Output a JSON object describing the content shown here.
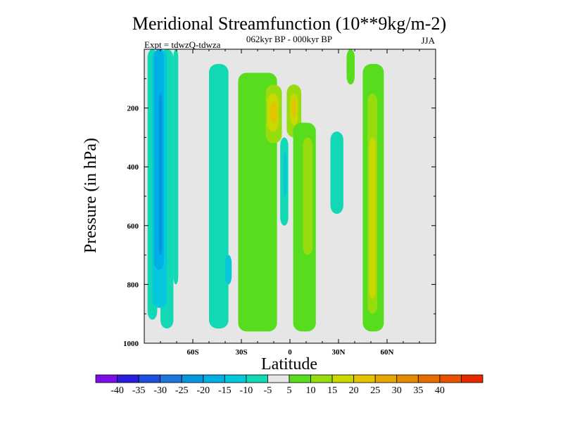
{
  "chart_data": {
    "type": "heatmap",
    "title": "Meridional Streamfunction (10**9kg/m-2)",
    "subtitle_left": "Expt = tdwzQ-tdwza",
    "subtitle_center": "062kyr BP - 000kyr BP",
    "subtitle_right": "JJA",
    "xlabel": "Latitude",
    "ylabel": "Pressure (in hPa)",
    "xlim": [
      -90,
      90
    ],
    "ylim": [
      1000,
      0
    ],
    "x_ticks": [
      {
        "value": -60,
        "label": "60S"
      },
      {
        "value": -30,
        "label": "30S"
      },
      {
        "value": 0,
        "label": "0"
      },
      {
        "value": 30,
        "label": "30N"
      },
      {
        "value": 60,
        "label": "60N"
      }
    ],
    "y_ticks": [
      {
        "value": 200,
        "label": "200"
      },
      {
        "value": 400,
        "label": "400"
      },
      {
        "value": 600,
        "label": "600"
      },
      {
        "value": 800,
        "label": "800"
      },
      {
        "value": 1000,
        "label": "1000"
      }
    ],
    "background_color": "#e6e6e6",
    "colorbar": {
      "colors": [
        "#7a10e6",
        "#2a1edc",
        "#1d4fdc",
        "#1e78dc",
        "#0596e0",
        "#00b0e4",
        "#06c8dc",
        "#12d8b4",
        "#e6e6e6",
        "#58dc1e",
        "#96dc0f",
        "#c8d800",
        "#e4c400",
        "#e6a800",
        "#e68a00",
        "#e66e00",
        "#e65200",
        "#e62a00"
      ],
      "labels": [
        "-40",
        "-35",
        "-30",
        "-25",
        "-20",
        "-15",
        "-10",
        "-5",
        "5",
        "10",
        "15",
        "20",
        "25",
        "30",
        "35",
        "40"
      ]
    },
    "regions": [
      {
        "lon": [
          -88,
          -82
        ],
        "p": [
          0,
          920
        ],
        "color": "#12d8b4"
      },
      {
        "lon": [
          -80,
          -72
        ],
        "p": [
          0,
          950
        ],
        "color": "#12d8b4"
      },
      {
        "lon": [
          -85,
          -76
        ],
        "p": [
          0,
          880
        ],
        "color": "#06c8dc"
      },
      {
        "lon": [
          -84,
          -78
        ],
        "p": [
          0,
          750
        ],
        "color": "#00b0e4"
      },
      {
        "lon": [
          -81,
          -79
        ],
        "p": [
          150,
          700
        ],
        "color": "#0596e0"
      },
      {
        "lon": [
          -72,
          -69
        ],
        "p": [
          0,
          800
        ],
        "color": "#12d8b4"
      },
      {
        "lon": [
          -50,
          -38
        ],
        "p": [
          50,
          950
        ],
        "color": "#12d8b4"
      },
      {
        "lon": [
          -40,
          -36
        ],
        "p": [
          700,
          800
        ],
        "color": "#06c8dc"
      },
      {
        "lon": [
          -32,
          -8
        ],
        "p": [
          80,
          960
        ],
        "color": "#58dc1e"
      },
      {
        "lon": [
          -15,
          -5
        ],
        "p": [
          120,
          320
        ],
        "color": "#96dc0f"
      },
      {
        "lon": [
          -14,
          -7
        ],
        "p": [
          150,
          280
        ],
        "color": "#c8d800"
      },
      {
        "lon": [
          -12,
          -8
        ],
        "p": [
          180,
          250
        ],
        "color": "#e4c400"
      },
      {
        "lon": [
          -2,
          7
        ],
        "p": [
          120,
          300
        ],
        "color": "#96dc0f"
      },
      {
        "lon": [
          0,
          5
        ],
        "p": [
          150,
          260
        ],
        "color": "#c8d800"
      },
      {
        "lon": [
          1,
          4
        ],
        "p": [
          170,
          230
        ],
        "color": "#e4c400"
      },
      {
        "lon": [
          2,
          16
        ],
        "p": [
          250,
          960
        ],
        "color": "#58dc1e"
      },
      {
        "lon": [
          8,
          14
        ],
        "p": [
          300,
          700
        ],
        "color": "#96dc0f"
      },
      {
        "lon": [
          -6,
          -1
        ],
        "p": [
          300,
          600
        ],
        "color": "#12d8b4"
      },
      {
        "lon": [
          -4,
          -2
        ],
        "p": [
          350,
          500
        ],
        "color": "#06c8dc"
      },
      {
        "lon": [
          25,
          33
        ],
        "p": [
          280,
          560
        ],
        "color": "#12d8b4"
      },
      {
        "lon": [
          35,
          40
        ],
        "p": [
          0,
          120
        ],
        "color": "#58dc1e"
      },
      {
        "lon": [
          45,
          58
        ],
        "p": [
          50,
          960
        ],
        "color": "#58dc1e"
      },
      {
        "lon": [
          48,
          54
        ],
        "p": [
          150,
          900
        ],
        "color": "#96dc0f"
      },
      {
        "lon": [
          49,
          53
        ],
        "p": [
          300,
          850
        ],
        "color": "#c8d800"
      }
    ]
  }
}
